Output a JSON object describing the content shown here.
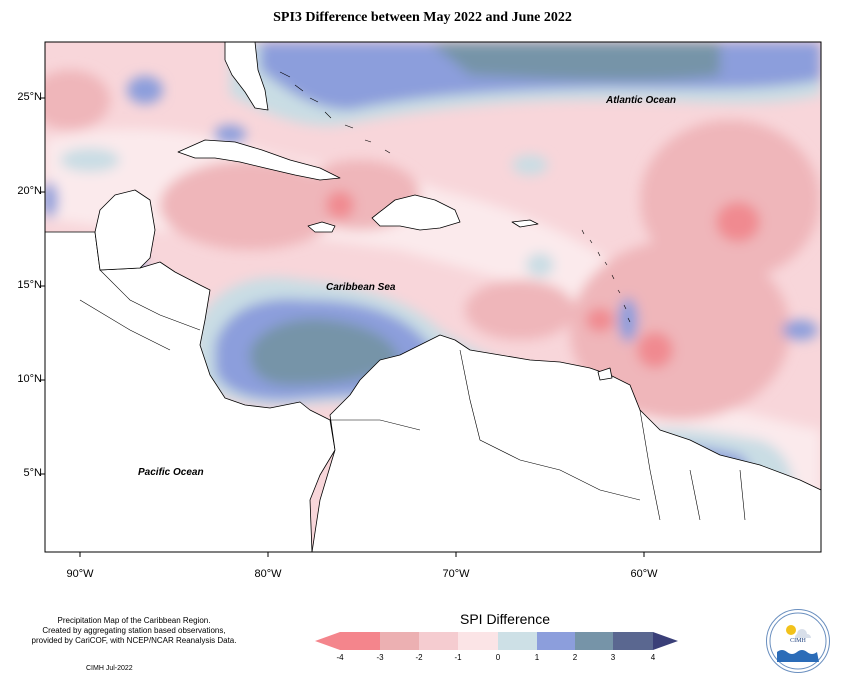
{
  "title": "SPI3 Difference between May 2022 and June 2022",
  "latitude_labels": [
    "25°N",
    "20°N",
    "15°N",
    "10°N",
    "5°N"
  ],
  "longitude_labels": [
    "90°W",
    "80°W",
    "70°W",
    "60°W"
  ],
  "ocean_labels": {
    "atlantic": "Atlantic Ocean",
    "caribbean": "Caribbean Sea",
    "pacific": "Pacific Ocean"
  },
  "credits": {
    "line1": "Precipitation Map of the Caribbean Region.",
    "line2": "Created by aggregating station based observations,",
    "line3": "provided by CariCOF, with NCEP/NCAR Reanalysis Data.",
    "date": "CIMH Jul-2022"
  },
  "legend": {
    "title": "SPI Difference",
    "ticks": [
      "-4",
      "-3",
      "-2",
      "-1",
      "0",
      "1",
      "2",
      "3",
      "4"
    ],
    "colors": [
      "#f4858c",
      "#ecb0b2",
      "#f5ccd0",
      "#fbe4e6",
      "#cde0e6",
      "#8c9edc",
      "#7694a8",
      "#5a6790"
    ]
  },
  "logo_text": "CIMH",
  "colors": {
    "land": "#ffffff",
    "coastline": "#000000",
    "light_pink": "#f8d6da",
    "pink": "#efb6ba",
    "red": "#f08a90",
    "pale": "#fbeaec",
    "light_blue": "#c9dde4",
    "blue": "#8c9edc",
    "slate": "#7694a8",
    "navy": "#5a6790"
  }
}
